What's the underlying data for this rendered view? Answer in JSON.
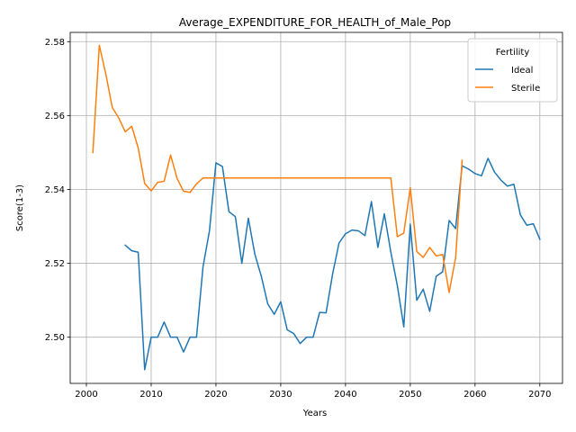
{
  "chart_data": {
    "type": "line",
    "title": "Average_EXPENDITURE_FOR_HEALTH_of_Male_Pop",
    "xlabel": "Years",
    "ylabel": "Score(1-3)",
    "xlim": [
      1997.5,
      2073.5
    ],
    "ylim": [
      2.4875,
      2.5825
    ],
    "xticks": [
      2000,
      2010,
      2020,
      2030,
      2040,
      2050,
      2060,
      2070
    ],
    "yticks": [
      2.5,
      2.52,
      2.54,
      2.56,
      2.58
    ],
    "yticklabels": [
      "2.50",
      "2.52",
      "2.54",
      "2.56",
      "2.58"
    ],
    "grid": true,
    "legend": {
      "title": "Fertility",
      "placement": "top-right"
    },
    "series": [
      {
        "name": "Ideal",
        "color": "#1f77b4",
        "x": [
          2006,
          2007,
          2008,
          2009,
          2010,
          2011,
          2012,
          2013,
          2014,
          2015,
          2016,
          2017,
          2018,
          2019,
          2020,
          2021,
          2022,
          2023,
          2024,
          2025,
          2026,
          2027,
          2028,
          2029,
          2030,
          2031,
          2032,
          2033,
          2034,
          2035,
          2036,
          2037,
          2038,
          2039,
          2040,
          2041,
          2042,
          2043,
          2044,
          2045,
          2046,
          2047,
          2048,
          2049,
          2050,
          2051,
          2052,
          2053,
          2054,
          2055,
          2056,
          2057,
          2058,
          2059,
          2060,
          2061,
          2062,
          2063,
          2064,
          2065,
          2066,
          2067,
          2068,
          2069,
          2070
        ],
        "y": [
          2.5249,
          2.5234,
          2.523,
          2.4912,
          2.5,
          2.5,
          2.5041,
          2.5,
          2.5,
          2.496,
          2.5,
          2.5,
          2.519,
          2.5288,
          2.5472,
          2.5462,
          2.534,
          2.5326,
          2.52,
          2.5322,
          2.5225,
          2.5165,
          2.509,
          2.5062,
          2.5096,
          2.502,
          2.501,
          2.4983,
          2.5,
          2.5,
          2.5067,
          2.5066,
          2.517,
          2.5255,
          2.528,
          2.529,
          2.5288,
          2.5275,
          2.5367,
          2.5243,
          2.5334,
          2.523,
          2.514,
          2.5028,
          2.5306,
          2.51,
          2.513,
          2.507,
          2.5165,
          2.5177,
          2.5316,
          2.5294,
          2.5464,
          2.5455,
          2.5443,
          2.5437,
          2.5484,
          2.5447,
          2.5425,
          2.5409,
          2.5414,
          2.5331,
          2.5303,
          2.5307,
          2.5265
        ]
      },
      {
        "name": "Sterile",
        "color": "#ff7f0e",
        "x": [
          2001,
          2002,
          2003,
          2004,
          2005,
          2006,
          2007,
          2008,
          2009,
          2010,
          2011,
          2012,
          2013,
          2014,
          2015,
          2016,
          2017,
          2018,
          2019,
          2020,
          2025,
          2030,
          2035,
          2040,
          2045,
          2047,
          2048,
          2049,
          2050,
          2051,
          2052,
          2053,
          2054,
          2055,
          2056,
          2057,
          2058
        ],
        "y": [
          2.55,
          2.579,
          2.5712,
          2.5622,
          2.5593,
          2.5556,
          2.5571,
          2.5512,
          2.5416,
          2.5396,
          2.5419,
          2.5422,
          2.5493,
          2.543,
          2.5395,
          2.5392,
          2.5415,
          2.5431,
          2.5431,
          2.5431,
          2.5431,
          2.5431,
          2.5431,
          2.5431,
          2.5431,
          2.5431,
          2.5272,
          2.5282,
          2.5405,
          2.5232,
          2.5216,
          2.5243,
          2.522,
          2.5224,
          2.5121,
          2.5215,
          2.5479
        ]
      }
    ]
  }
}
